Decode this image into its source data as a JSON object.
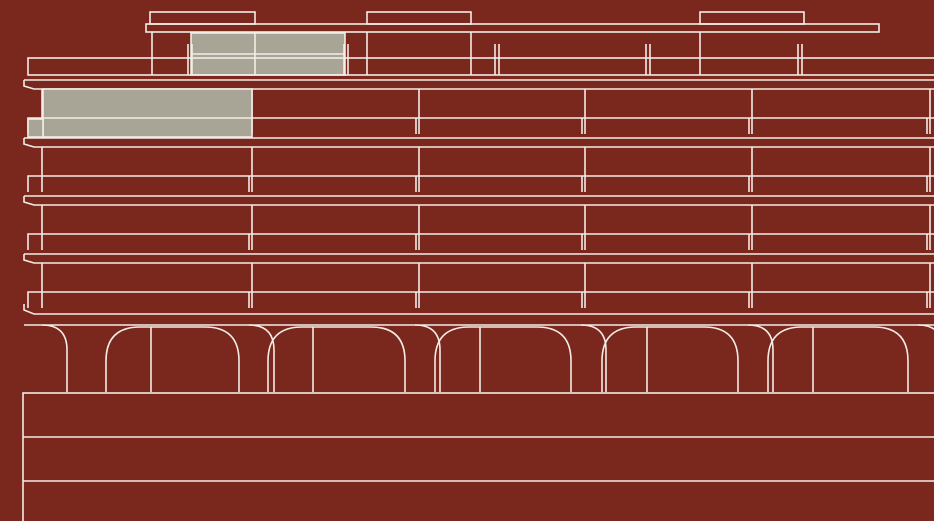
{
  "drawing": {
    "subject": "building-facade-elevation",
    "colors": {
      "background": "#7a271e",
      "line": "#f4ece6",
      "fill": "#a9a596"
    },
    "counts": {
      "floors": 4,
      "bays": 5,
      "arches": 5
    }
  }
}
